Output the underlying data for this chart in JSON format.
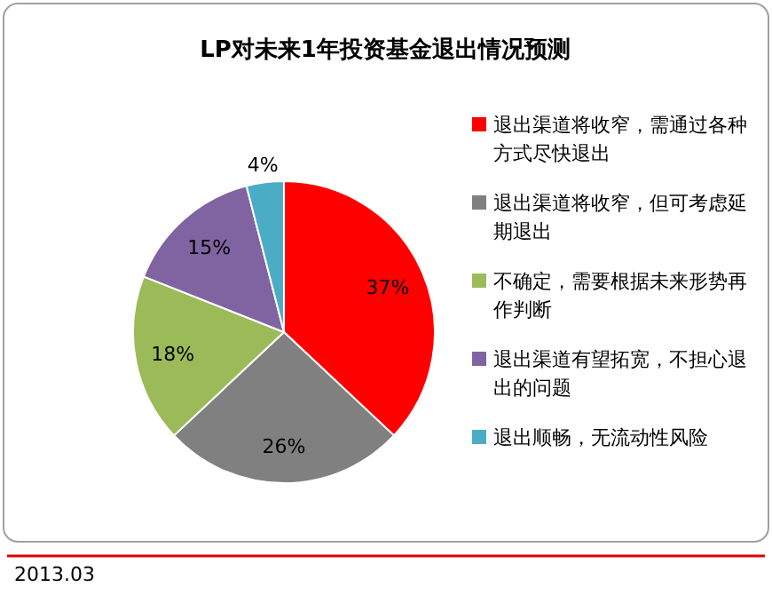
{
  "chart_data": {
    "type": "pie",
    "title": "LP对未来1年投资基金退出情况预测",
    "categories": [
      "退出渠道将收窄，需通过各种方式尽快退出",
      "退出渠道将收窄，但可考虑延期退出",
      "不确定，需要根据未来形势再作判断",
      "退出渠道有望拓宽，不担心退出的问题",
      "退出顺畅，无流动性风险"
    ],
    "values": [
      37,
      26,
      18,
      15,
      4
    ],
    "colors": [
      "#ff0000",
      "#808080",
      "#9bbb59",
      "#8064a2",
      "#4bacc6"
    ],
    "value_labels": [
      "37%",
      "26%",
      "18%",
      "15%",
      "4%"
    ],
    "legend": "right",
    "annotations": [
      "2013.03"
    ]
  }
}
